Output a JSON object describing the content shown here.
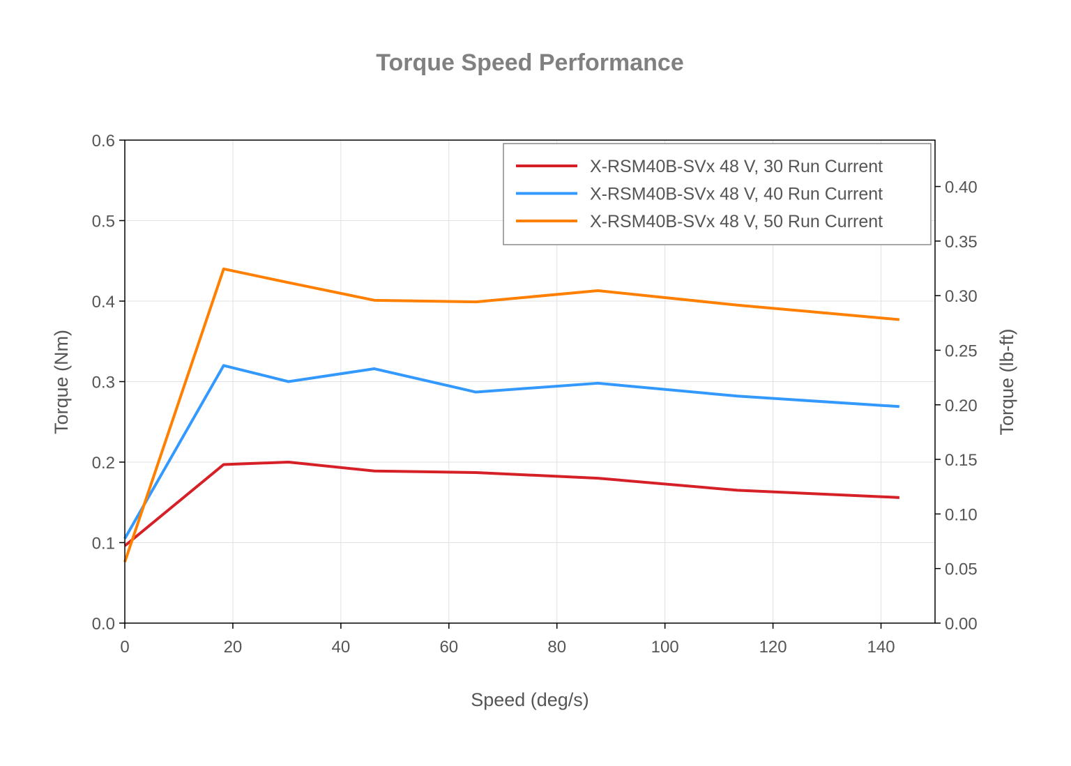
{
  "chart_data": {
    "type": "line",
    "title": "Torque Speed Performance",
    "xlabel": "Speed (deg/s)",
    "ylabel": "Torque (Nm)",
    "y2label": "Torque (lb-ft)",
    "xlim": [
      0,
      150
    ],
    "ylim": [
      0,
      0.6
    ],
    "y2lim": [
      0,
      0.4425
    ],
    "xticks": [
      "0",
      "20",
      "40",
      "60",
      "80",
      "100",
      "120",
      "140"
    ],
    "yticks": [
      "0.0",
      "0.1",
      "0.2",
      "0.3",
      "0.4",
      "0.5",
      "0.6"
    ],
    "y2ticks": [
      "0.00",
      "0.05",
      "0.10",
      "0.15",
      "0.20",
      "0.25",
      "0.30",
      "0.35",
      "0.40"
    ],
    "grid": true,
    "legend_position": "top-right",
    "x": [
      0,
      18.3,
      30.3,
      46.2,
      65.0,
      87.6,
      113.4,
      143.4
    ],
    "series": [
      {
        "name": "X-RSM40B-SVx 48 V, 30 Run Current",
        "color": "#d62027",
        "values": [
          0.096,
          0.197,
          0.2,
          0.189,
          0.187,
          0.18,
          0.165,
          0.156
        ]
      },
      {
        "name": "X-RSM40B-SVx 48 V, 40 Run Current",
        "color": "#3399ff",
        "values": [
          0.105,
          0.32,
          0.3,
          0.316,
          0.287,
          0.298,
          0.282,
          0.269
        ]
      },
      {
        "name": "X-RSM40B-SVx 48 V, 50 Run Current",
        "color": "#ff8000",
        "values": [
          0.076,
          0.44,
          0.423,
          0.401,
          0.399,
          0.413,
          0.395,
          0.377
        ]
      }
    ]
  }
}
